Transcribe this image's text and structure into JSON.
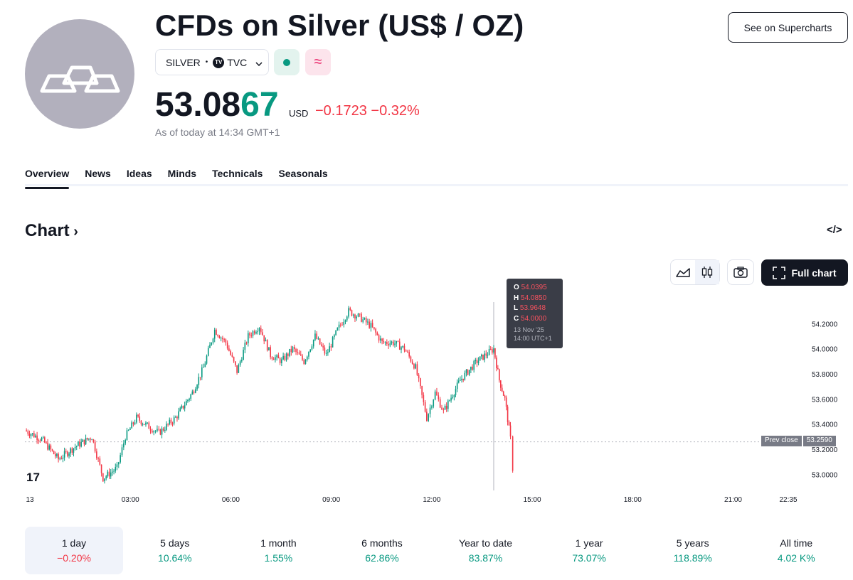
{
  "header": {
    "title": "CFDs on Silver (US$ / OZ)",
    "see_button": "See on Supercharts",
    "symbol": "SILVER",
    "exchange": "TVC",
    "exchange_logo": "TV",
    "price_main": "53.08",
    "price_tail": "67",
    "currency": "USD",
    "change": "−0.1723 −0.32%",
    "as_of": "As of today at 14:34 GMT+1"
  },
  "tabs": [
    "Overview",
    "News",
    "Ideas",
    "Minds",
    "Technicals",
    "Seasonals"
  ],
  "chart_section": {
    "heading": "Chart",
    "full_chart": "Full chart",
    "tooltip": {
      "o_label": "O",
      "o": "54.0395",
      "h_label": "H",
      "h": "54.0850",
      "l_label": "L",
      "l": "53.9648",
      "c_label": "C",
      "c": "54.0000",
      "date": "13 Nov '25",
      "time": "14:00 UTC+1"
    },
    "prev_close_label": "Prev close",
    "prev_close_value": "53.2590",
    "tv_watermark": "17"
  },
  "chart_data": {
    "type": "candlestick",
    "x_ticks": [
      "13",
      "03:00",
      "06:00",
      "09:00",
      "12:00",
      "15:00",
      "18:00",
      "21:00",
      "22:35"
    ],
    "y_ticks": [
      "54.2000",
      "54.0000",
      "53.8000",
      "53.6000",
      "53.4000",
      "53.2000",
      "53.0000"
    ],
    "ylim": [
      52.9,
      54.4
    ],
    "prev_close": 53.259,
    "series": [
      {
        "time": "00:00",
        "value": 53.35
      },
      {
        "time": "00:30",
        "value": 53.28
      },
      {
        "time": "01:00",
        "value": 53.12
      },
      {
        "time": "01:30",
        "value": 53.22
      },
      {
        "time": "02:00",
        "value": 53.3
      },
      {
        "time": "02:20",
        "value": 52.97
      },
      {
        "time": "02:45",
        "value": 53.05
      },
      {
        "time": "03:00",
        "value": 53.3
      },
      {
        "time": "03:20",
        "value": 53.45
      },
      {
        "time": "03:45",
        "value": 53.37
      },
      {
        "time": "04:00",
        "value": 53.33
      },
      {
        "time": "04:30",
        "value": 53.45
      },
      {
        "time": "05:00",
        "value": 53.65
      },
      {
        "time": "05:20",
        "value": 53.85
      },
      {
        "time": "05:40",
        "value": 54.15
      },
      {
        "time": "06:00",
        "value": 54.05
      },
      {
        "time": "06:20",
        "value": 53.82
      },
      {
        "time": "06:40",
        "value": 54.1
      },
      {
        "time": "07:00",
        "value": 54.18
      },
      {
        "time": "07:20",
        "value": 53.95
      },
      {
        "time": "07:40",
        "value": 53.9
      },
      {
        "time": "08:00",
        "value": 54.0
      },
      {
        "time": "08:20",
        "value": 53.9
      },
      {
        "time": "08:40",
        "value": 54.1
      },
      {
        "time": "09:00",
        "value": 53.95
      },
      {
        "time": "09:20",
        "value": 54.15
      },
      {
        "time": "09:40",
        "value": 54.3
      },
      {
        "time": "10:00",
        "value": 54.25
      },
      {
        "time": "10:20",
        "value": 54.18
      },
      {
        "time": "10:40",
        "value": 54.05
      },
      {
        "time": "11:00",
        "value": 54.05
      },
      {
        "time": "11:20",
        "value": 54.0
      },
      {
        "time": "11:40",
        "value": 53.85
      },
      {
        "time": "12:00",
        "value": 53.45
      },
      {
        "time": "12:15",
        "value": 53.65
      },
      {
        "time": "12:30",
        "value": 53.5
      },
      {
        "time": "13:00",
        "value": 53.75
      },
      {
        "time": "13:30",
        "value": 53.9
      },
      {
        "time": "14:00",
        "value": 54.0
      },
      {
        "time": "14:10",
        "value": 53.75
      },
      {
        "time": "14:20",
        "value": 53.6
      },
      {
        "time": "14:30",
        "value": 53.28
      },
      {
        "time": "14:34",
        "value": 53.05
      }
    ]
  },
  "periods": [
    {
      "label": "1 day",
      "value": "−0.20%",
      "dir": "neg"
    },
    {
      "label": "5 days",
      "value": "10.64%",
      "dir": "pos"
    },
    {
      "label": "1 month",
      "value": "1.55%",
      "dir": "pos"
    },
    {
      "label": "6 months",
      "value": "62.86%",
      "dir": "pos"
    },
    {
      "label": "Year to date",
      "value": "83.87%",
      "dir": "pos"
    },
    {
      "label": "1 year",
      "value": "73.07%",
      "dir": "pos"
    },
    {
      "label": "5 years",
      "value": "118.89%",
      "dir": "pos"
    },
    {
      "label": "All time",
      "value": "4.02 K%",
      "dir": "pos"
    }
  ],
  "colors": {
    "up": "#089981",
    "down": "#f23645",
    "text": "#131722",
    "muted": "#787b86"
  },
  "icons": {
    "avatar": "silver-bars-icon",
    "embed": "code-embed-icon",
    "camera": "camera-icon",
    "fullscreen": "fullscreen-icon",
    "area_chart": "area-chart-icon",
    "candles": "candles-icon"
  }
}
